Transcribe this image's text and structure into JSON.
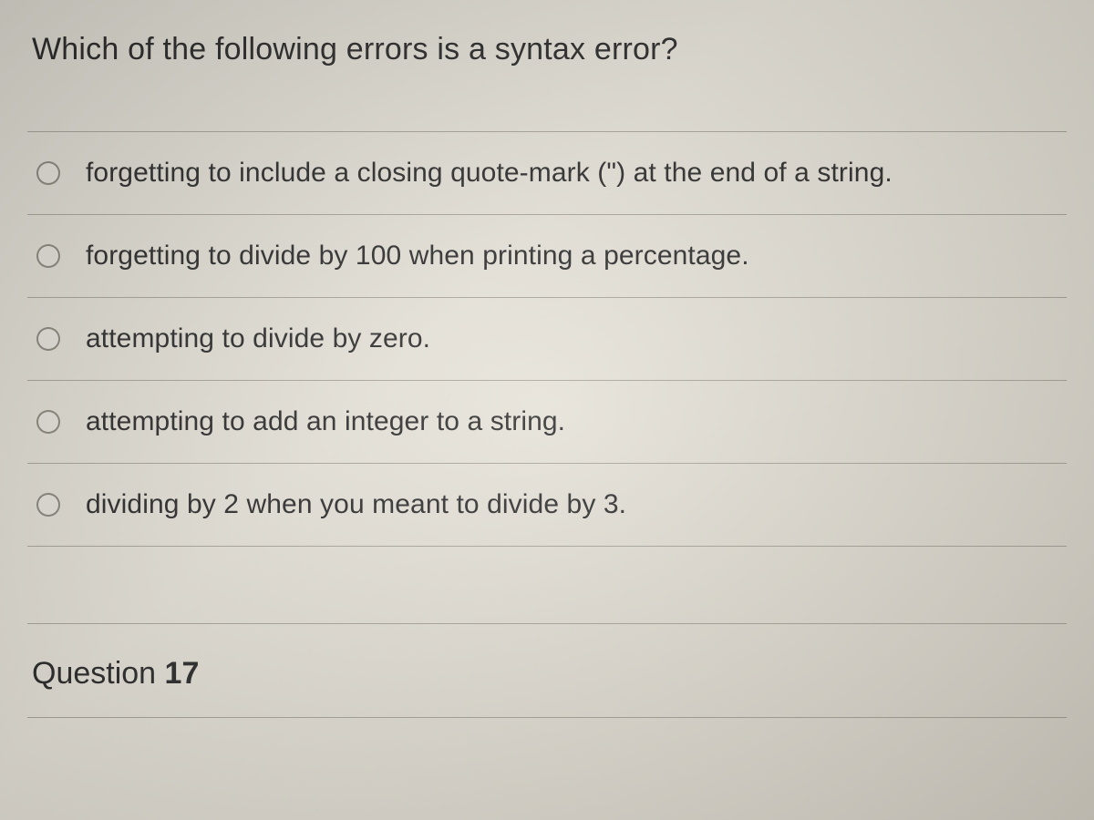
{
  "question": {
    "prompt": "Which of the following errors is a syntax error?",
    "options": [
      {
        "label": "forgetting to include a closing quote-mark (\") at the end of a string."
      },
      {
        "label": "forgetting to divide by 100 when printing a percentage."
      },
      {
        "label": "attempting to divide by zero."
      },
      {
        "label": "attempting to add an integer to a string."
      },
      {
        "label": "dividing by 2 when you meant to divide by 3."
      }
    ]
  },
  "footer": {
    "next_label_prefix": "Question ",
    "next_number": "17"
  },
  "colors": {
    "text": "#2a2a2a",
    "divider": "rgba(120,115,105,0.55)",
    "radio_border": "rgba(100,95,85,0.7)"
  }
}
